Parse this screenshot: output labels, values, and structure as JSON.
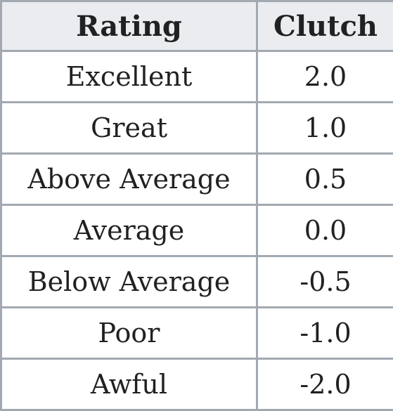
{
  "table": {
    "headers": {
      "rating": "Rating",
      "clutch": "Clutch"
    },
    "rows": [
      {
        "rating": "Excellent",
        "clutch": "2.0"
      },
      {
        "rating": "Great",
        "clutch": "1.0"
      },
      {
        "rating": "Above Average",
        "clutch": "0.5"
      },
      {
        "rating": "Average",
        "clutch": "0.0"
      },
      {
        "rating": "Below Average",
        "clutch": "-0.5"
      },
      {
        "rating": "Poor",
        "clutch": "-1.0"
      },
      {
        "rating": "Awful",
        "clutch": "-2.0"
      }
    ]
  },
  "colors": {
    "border": "#a2a9b1",
    "header_background": "#eaecf0",
    "cell_background": "#ffffff",
    "text": "#202122"
  }
}
